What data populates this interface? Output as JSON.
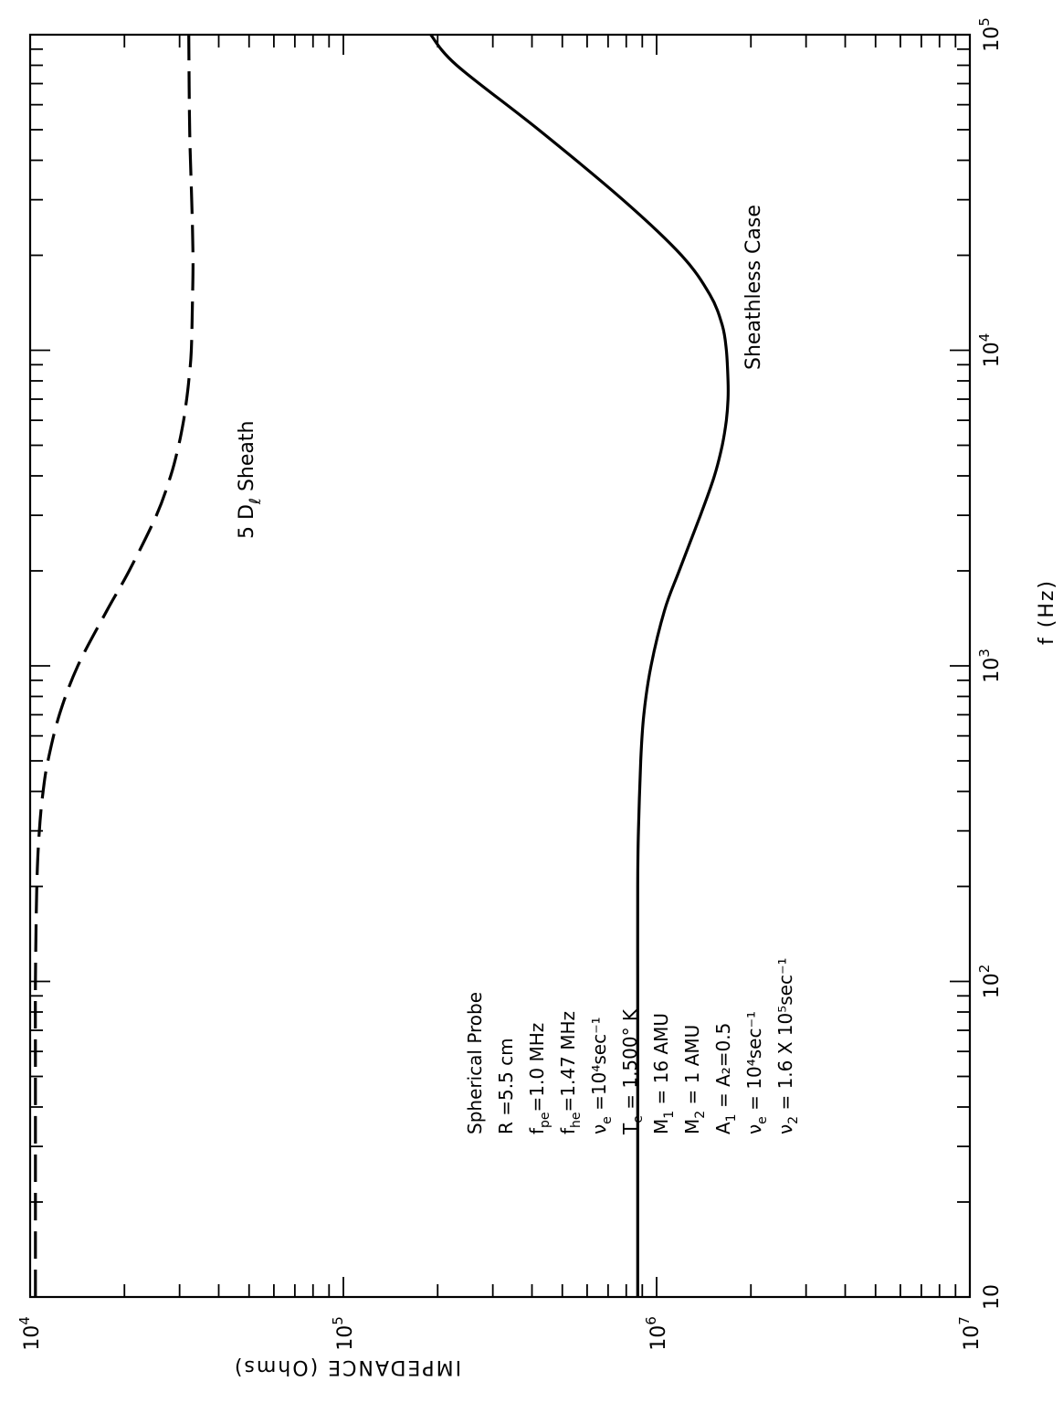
{
  "chart_data": {
    "type": "line",
    "title": "",
    "xlabel": "f (Hz)",
    "ylabel": "IMPEDANCE (Ohms)",
    "x_scale": "log",
    "y_scale": "log",
    "xlim": [
      10,
      100000
    ],
    "ylim": [
      10000,
      10000000
    ],
    "x_ticks": [
      {
        "value": 10,
        "label": "10",
        "sup": ""
      },
      {
        "value": 100,
        "label": "10",
        "sup": "2"
      },
      {
        "value": 1000,
        "label": "10",
        "sup": "3"
      },
      {
        "value": 10000,
        "label": "10",
        "sup": "4"
      },
      {
        "value": 100000,
        "label": "10",
        "sup": "5"
      }
    ],
    "y_ticks": [
      {
        "value": 10000,
        "label": "10",
        "sup": "4"
      },
      {
        "value": 100000,
        "label": "10",
        "sup": "5"
      },
      {
        "value": 1000000,
        "label": "10",
        "sup": "6"
      },
      {
        "value": 10000000,
        "label": "10",
        "sup": "7"
      }
    ],
    "grid": false,
    "series": [
      {
        "name": "5 Dℓ Sheath",
        "style": "solid",
        "x": [
          10,
          50,
          100,
          200,
          300,
          500,
          700,
          1000,
          1500,
          2000,
          3000,
          4000,
          5000,
          6000,
          7000,
          8000,
          10000,
          12000,
          15000,
          20000,
          30000,
          50000,
          80000,
          100000
        ],
        "y": [
          870000,
          870000,
          870000,
          870000,
          875000,
          890000,
          910000,
          960000,
          1060000,
          1180000,
          1380000,
          1530000,
          1620000,
          1670000,
          1690000,
          1690000,
          1670000,
          1620000,
          1480000,
          1200000,
          780000,
          420000,
          230000,
          190000
        ]
      },
      {
        "name": "Sheathless Case",
        "style": "dashed",
        "x": [
          10,
          50,
          100,
          200,
          300,
          400,
          500,
          700,
          1000,
          1500,
          2000,
          3000,
          4000,
          5000,
          6000,
          7000,
          8000,
          10000,
          15000,
          20000,
          30000,
          50000,
          100000
        ],
        "y": [
          10400,
          10400,
          10400,
          10500,
          10700,
          11000,
          11400,
          12400,
          14200,
          17600,
          20700,
          25300,
          28100,
          29800,
          30900,
          31600,
          32100,
          32700,
          33000,
          33100,
          32800,
          32300,
          32100
        ]
      }
    ],
    "annotations": {
      "sheath_label": "5 D",
      "sheath_subscript": "ℓ",
      "sheath_word": "Sheath",
      "sheathless_label": "Sheathless Case"
    },
    "parameters": [
      {
        "base": "Spherical  Probe",
        "sub": "",
        "rest": ""
      },
      {
        "base": "R",
        "sub": "",
        "rest": " =5.5 cm"
      },
      {
        "base": "f",
        "sub": "pe",
        "rest": "=1.0 MHz"
      },
      {
        "base": "f",
        "sub": "he",
        "rest": "=1.47 MHz"
      },
      {
        "base": "ν",
        "sub": "e",
        "rest": " =10⁴sec⁻¹"
      },
      {
        "base": "T",
        "sub": "e",
        "rest": " = 1,500° K"
      },
      {
        "base": "M",
        "sub": "1",
        "rest": " = 16 AMU"
      },
      {
        "base": "M",
        "sub": "2",
        "rest": " = 1 AMU"
      },
      {
        "base": "A",
        "sub": "1",
        "rest": " = A₂=0.5"
      },
      {
        "base": "ν",
        "sub": "e",
        "rest": "  = 10⁴sec⁻¹"
      },
      {
        "base": "ν",
        "sub": "2",
        "rest": "  = 1.6 X 10⁵sec⁻¹"
      }
    ]
  }
}
